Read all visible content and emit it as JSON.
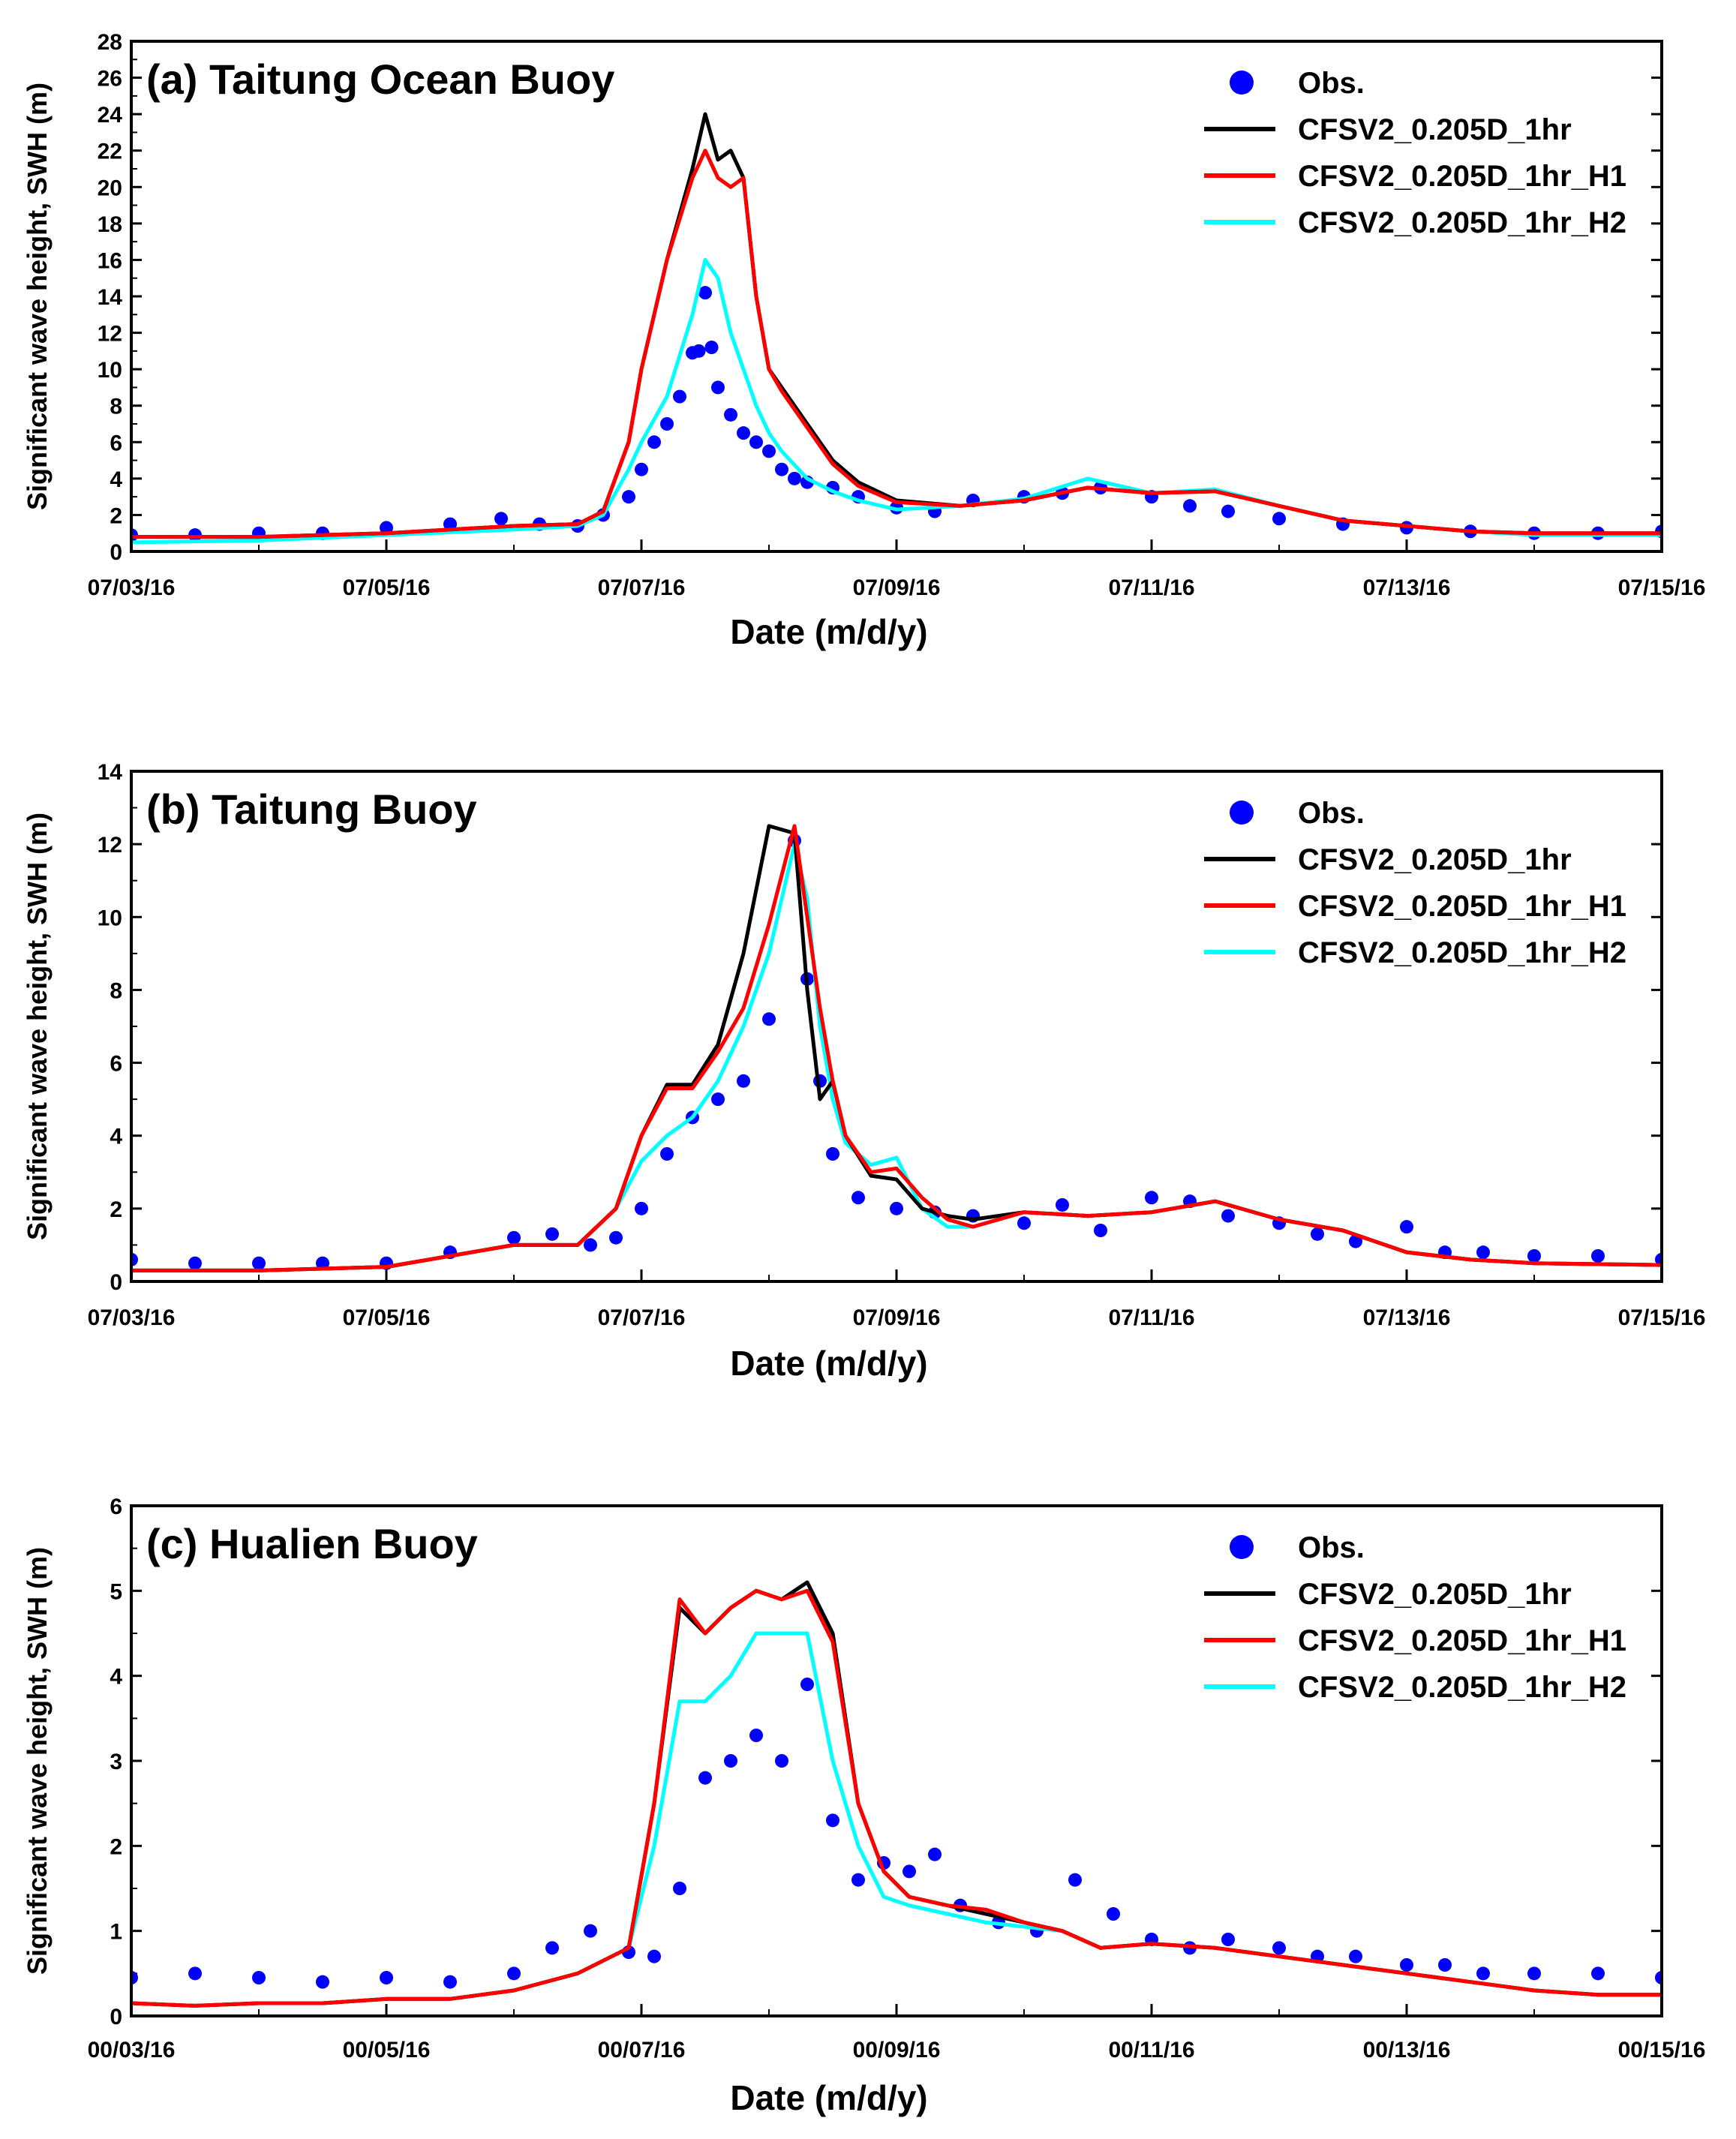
{
  "chart_data": [
    {
      "type": "line",
      "title": "(a) Taitung Ocean Buoy",
      "xlabel": "Date (m/d/y)",
      "ylabel": "Significant wave height, SWH (m)",
      "xlim": [
        0,
        12
      ],
      "ylim": [
        0,
        28
      ],
      "yticks": [
        "0",
        "2",
        "4",
        "6",
        "8",
        "10",
        "12",
        "14",
        "16",
        "18",
        "20",
        "22",
        "24",
        "26",
        "28"
      ],
      "xticks": [
        "07/03/16",
        "07/05/16",
        "07/07/16",
        "07/09/16",
        "07/11/16",
        "07/13/16",
        "07/15/16"
      ],
      "legend": [
        "Obs.",
        "CFSV2_0.205D_1hr",
        "CFSV2_0.205D_1hr_H1",
        "CFSV2_0.205D_1hr_H2"
      ],
      "legend_position": "top-right",
      "series": [
        {
          "name": "CFSV2_0.205D_1hr",
          "color": "#000000",
          "x": [
            0,
            1,
            2,
            3,
            3.5,
            3.7,
            3.9,
            4,
            4.2,
            4.4,
            4.5,
            4.6,
            4.7,
            4.8,
            4.9,
            5,
            5.1,
            5.3,
            5.5,
            5.7,
            6,
            6.5,
            7,
            7.5,
            8,
            8.5,
            9,
            9.5,
            10,
            10.5,
            11,
            12
          ],
          "y": [
            0.8,
            0.8,
            1.0,
            1.4,
            1.5,
            2.2,
            6,
            10,
            16,
            21,
            24,
            21.5,
            22,
            20.5,
            14,
            10,
            9,
            7,
            5,
            3.8,
            2.8,
            2.5,
            2.8,
            3.5,
            3.2,
            3.3,
            2.5,
            1.7,
            1.4,
            1.1,
            1.0,
            1.0
          ]
        },
        {
          "name": "CFSV2_0.205D_1hr_H1",
          "color": "#ff0000",
          "x": [
            0,
            1,
            2,
            3,
            3.5,
            3.7,
            3.9,
            4,
            4.2,
            4.4,
            4.5,
            4.6,
            4.7,
            4.8,
            4.9,
            5,
            5.1,
            5.3,
            5.5,
            5.7,
            6,
            6.5,
            7,
            7.5,
            8,
            8.5,
            9,
            9.5,
            10,
            10.5,
            11,
            12
          ],
          "y": [
            0.8,
            0.8,
            1.0,
            1.4,
            1.5,
            2.2,
            6,
            10,
            16,
            20.5,
            22,
            20.5,
            20,
            20.5,
            14,
            10,
            8.8,
            6.8,
            4.8,
            3.6,
            2.7,
            2.5,
            2.8,
            3.5,
            3.2,
            3.3,
            2.5,
            1.7,
            1.4,
            1.1,
            1.0,
            1.0
          ]
        },
        {
          "name": "CFSV2_0.205D_1hr_H2",
          "color": "#00ffff",
          "x": [
            0,
            1,
            2,
            3,
            3.5,
            3.7,
            3.9,
            4,
            4.2,
            4.4,
            4.5,
            4.6,
            4.7,
            4.8,
            4.9,
            5,
            5.1,
            5.3,
            5.5,
            5.7,
            6,
            6.5,
            7,
            7.5,
            8,
            8.5,
            9,
            9.5,
            10,
            10.5,
            11,
            12
          ],
          "y": [
            0.5,
            0.6,
            0.9,
            1.2,
            1.4,
            2.0,
            4.5,
            6,
            8.5,
            13,
            16,
            15,
            12,
            10,
            8,
            6.5,
            5.5,
            4,
            3.3,
            2.8,
            2.3,
            2.5,
            2.9,
            4.0,
            3.2,
            3.4,
            2.5,
            1.7,
            1.4,
            1.1,
            0.9,
            0.9
          ]
        },
        {
          "name": "Obs.",
          "color": "#0000ff",
          "x": [
            0,
            0.5,
            1,
            1.5,
            2,
            2.5,
            2.9,
            3.2,
            3.5,
            3.7,
            3.9,
            4.0,
            4.1,
            4.2,
            4.3,
            4.4,
            4.45,
            4.5,
            4.55,
            4.6,
            4.7,
            4.8,
            4.9,
            5.0,
            5.1,
            5.2,
            5.3,
            5.5,
            5.7,
            6,
            6.3,
            6.6,
            7,
            7.3,
            7.6,
            8,
            8.3,
            8.6,
            9,
            9.5,
            10,
            10.5,
            11,
            11.5,
            12
          ],
          "y": [
            0.9,
            0.9,
            1.0,
            1.0,
            1.3,
            1.5,
            1.8,
            1.5,
            1.4,
            2.0,
            3.0,
            4.5,
            6.0,
            7.0,
            8.5,
            10.9,
            11.0,
            14.2,
            11.2,
            9.0,
            7.5,
            6.5,
            6.0,
            5.5,
            4.5,
            4.0,
            3.8,
            3.5,
            3.0,
            2.4,
            2.2,
            2.8,
            3.0,
            3.2,
            3.5,
            3.0,
            2.5,
            2.2,
            1.8,
            1.5,
            1.3,
            1.1,
            1.0,
            1.0,
            1.1
          ]
        }
      ]
    },
    {
      "type": "line",
      "title": "(b) Taitung Buoy",
      "xlabel": "Date (m/d/y)",
      "ylabel": "Significant wave height, SWH (m)",
      "xlim": [
        0,
        12
      ],
      "ylim": [
        0,
        14
      ],
      "yticks": [
        "0",
        "2",
        "4",
        "6",
        "8",
        "10",
        "12",
        "14"
      ],
      "xticks": [
        "07/03/16",
        "07/05/16",
        "07/07/16",
        "07/09/16",
        "07/11/16",
        "07/13/16",
        "07/15/16"
      ],
      "legend": [
        "Obs.",
        "CFSV2_0.205D_1hr",
        "CFSV2_0.205D_1hr_H1",
        "CFSV2_0.205D_1hr_H2"
      ],
      "legend_position": "top-right",
      "series": [
        {
          "name": "CFSV2_0.205D_1hr",
          "color": "#000000",
          "x": [
            0,
            1,
            2,
            3,
            3.5,
            3.8,
            4.0,
            4.2,
            4.4,
            4.6,
            4.8,
            5.0,
            5.2,
            5.3,
            5.4,
            5.5,
            5.6,
            5.8,
            6.0,
            6.2,
            6.4,
            6.6,
            7,
            7.5,
            8,
            8.5,
            9,
            9.5,
            10,
            10.5,
            11,
            12
          ],
          "y": [
            0.3,
            0.3,
            0.4,
            1.0,
            1.0,
            2.0,
            4.0,
            5.4,
            5.4,
            6.5,
            9,
            12.5,
            12.3,
            8,
            5.0,
            5.5,
            4.0,
            2.9,
            2.8,
            2.0,
            1.8,
            1.7,
            1.9,
            1.8,
            1.9,
            2.2,
            1.7,
            1.4,
            0.8,
            0.6,
            0.5,
            0.45
          ]
        },
        {
          "name": "CFSV2_0.205D_1hr_H1",
          "color": "#ff0000",
          "x": [
            0,
            1,
            2,
            3,
            3.5,
            3.8,
            4.0,
            4.2,
            4.4,
            4.6,
            4.8,
            5.0,
            5.2,
            5.3,
            5.4,
            5.5,
            5.6,
            5.8,
            6.0,
            6.2,
            6.4,
            6.6,
            7,
            7.5,
            8,
            8.5,
            9,
            9.5,
            10,
            10.5,
            11,
            12
          ],
          "y": [
            0.3,
            0.3,
            0.4,
            1.0,
            1.0,
            2.0,
            4.0,
            5.3,
            5.3,
            6.3,
            7.5,
            9.8,
            12.5,
            10,
            7.5,
            5.5,
            4.0,
            3.0,
            3.1,
            2.3,
            1.7,
            1.5,
            1.9,
            1.8,
            1.9,
            2.2,
            1.7,
            1.4,
            0.8,
            0.6,
            0.5,
            0.45
          ]
        },
        {
          "name": "CFSV2_0.205D_1hr_H2",
          "color": "#00ffff",
          "x": [
            0,
            1,
            2,
            3,
            3.5,
            3.8,
            4.0,
            4.2,
            4.4,
            4.6,
            4.8,
            5.0,
            5.2,
            5.3,
            5.4,
            5.5,
            5.6,
            5.8,
            6.0,
            6.2,
            6.4,
            6.6,
            7,
            7.5,
            8,
            8.5,
            9,
            9.5,
            10,
            10.5,
            11,
            12
          ],
          "y": [
            0.3,
            0.3,
            0.4,
            1.0,
            1.0,
            2.0,
            3.3,
            4.0,
            4.5,
            5.5,
            7.0,
            9.0,
            12.0,
            10.5,
            7,
            5.0,
            3.8,
            3.2,
            3.4,
            2.0,
            1.5,
            1.5,
            1.9,
            1.8,
            1.9,
            2.2,
            1.7,
            1.4,
            0.8,
            0.6,
            0.5,
            0.45
          ]
        },
        {
          "name": "Obs.",
          "color": "#0000ff",
          "x": [
            0,
            0.5,
            1,
            1.5,
            2,
            2.5,
            3.0,
            3.3,
            3.6,
            3.8,
            4.0,
            4.2,
            4.4,
            4.6,
            4.8,
            5.0,
            5.2,
            5.3,
            5.4,
            5.5,
            5.7,
            6.0,
            6.3,
            6.6,
            7,
            7.3,
            7.6,
            8,
            8.3,
            8.6,
            9,
            9.3,
            9.6,
            10,
            10.3,
            10.6,
            11,
            11.5,
            12
          ],
          "y": [
            0.6,
            0.5,
            0.5,
            0.5,
            0.5,
            0.8,
            1.2,
            1.3,
            1.0,
            1.2,
            2.0,
            3.5,
            4.5,
            5.0,
            5.5,
            7.2,
            12.1,
            8.3,
            5.5,
            3.5,
            2.3,
            2.0,
            1.9,
            1.8,
            1.6,
            2.1,
            1.4,
            2.3,
            2.2,
            1.8,
            1.6,
            1.3,
            1.1,
            1.5,
            0.8,
            0.8,
            0.7,
            0.7,
            0.6
          ]
        }
      ]
    },
    {
      "type": "line",
      "title": "(c) Hualien Buoy",
      "xlabel": "Date (m/d/y)",
      "ylabel": "Significant wave height, SWH (m)",
      "xlim": [
        0,
        12
      ],
      "ylim": [
        0,
        6
      ],
      "yticks": [
        "0",
        "1",
        "2",
        "3",
        "4",
        "5",
        "6"
      ],
      "xticks": [
        "00/03/16",
        "00/05/16",
        "00/07/16",
        "00/09/16",
        "00/11/16",
        "00/13/16",
        "00/15/16"
      ],
      "legend": [
        "Obs.",
        "CFSV2_0.205D_1hr",
        "CFSV2_0.205D_1hr_H1",
        "CFSV2_0.205D_1hr_H2"
      ],
      "legend_position": "top-right",
      "series": [
        {
          "name": "CFSV2_0.205D_1hr",
          "color": "#000000",
          "x": [
            0,
            0.5,
            1,
            1.5,
            2,
            2.5,
            3,
            3.5,
            3.9,
            4.1,
            4.3,
            4.5,
            4.7,
            4.9,
            5.1,
            5.3,
            5.5,
            5.7,
            5.9,
            6.1,
            6.4,
            6.7,
            7,
            7.3,
            7.6,
            8,
            8.5,
            9,
            9.5,
            10,
            10.5,
            11,
            11.5,
            12
          ],
          "y": [
            0.15,
            0.12,
            0.15,
            0.15,
            0.2,
            0.2,
            0.3,
            0.5,
            0.8,
            2.5,
            4.8,
            4.5,
            4.8,
            5.0,
            4.9,
            5.1,
            4.5,
            2.5,
            1.7,
            1.4,
            1.3,
            1.2,
            1.1,
            1.0,
            0.8,
            0.85,
            0.8,
            0.7,
            0.6,
            0.5,
            0.4,
            0.3,
            0.25,
            0.25
          ]
        },
        {
          "name": "CFSV2_0.205D_1hr_H1",
          "color": "#ff0000",
          "x": [
            0,
            0.5,
            1,
            1.5,
            2,
            2.5,
            3,
            3.5,
            3.9,
            4.1,
            4.3,
            4.5,
            4.7,
            4.9,
            5.1,
            5.3,
            5.5,
            5.7,
            5.9,
            6.1,
            6.4,
            6.7,
            7,
            7.3,
            7.6,
            8,
            8.5,
            9,
            9.5,
            10,
            10.5,
            11,
            11.5,
            12
          ],
          "y": [
            0.15,
            0.12,
            0.15,
            0.15,
            0.2,
            0.2,
            0.3,
            0.5,
            0.8,
            2.5,
            4.9,
            4.5,
            4.8,
            5.0,
            4.9,
            5.0,
            4.4,
            2.5,
            1.7,
            1.4,
            1.3,
            1.25,
            1.1,
            1.0,
            0.8,
            0.85,
            0.8,
            0.7,
            0.6,
            0.5,
            0.4,
            0.3,
            0.25,
            0.25
          ]
        },
        {
          "name": "CFSV2_0.205D_1hr_H2",
          "color": "#00ffff",
          "x": [
            0,
            0.5,
            1,
            1.5,
            2,
            2.5,
            3,
            3.5,
            3.9,
            4.1,
            4.3,
            4.5,
            4.7,
            4.9,
            5.1,
            5.3,
            5.5,
            5.7,
            5.9,
            6.1,
            6.4,
            6.7,
            7,
            7.3,
            7.6,
            8,
            8.5,
            9,
            9.5,
            10,
            10.5,
            11,
            11.5,
            12
          ],
          "y": [
            0.15,
            0.12,
            0.15,
            0.15,
            0.2,
            0.2,
            0.3,
            0.5,
            0.8,
            2.0,
            3.7,
            3.7,
            4.0,
            4.5,
            4.5,
            4.5,
            3.0,
            2.0,
            1.4,
            1.3,
            1.2,
            1.1,
            1.05,
            1.0,
            0.8,
            0.85,
            0.8,
            0.7,
            0.6,
            0.5,
            0.4,
            0.3,
            0.25,
            0.25
          ]
        },
        {
          "name": "Obs.",
          "color": "#0000ff",
          "x": [
            0,
            0.5,
            1,
            1.5,
            2,
            2.5,
            3,
            3.3,
            3.6,
            3.9,
            4.1,
            4.3,
            4.5,
            4.7,
            4.9,
            5.1,
            5.3,
            5.5,
            5.7,
            5.9,
            6.1,
            6.3,
            6.5,
            6.8,
            7.1,
            7.4,
            7.7,
            8,
            8.3,
            8.6,
            9,
            9.3,
            9.6,
            10,
            10.3,
            10.6,
            11,
            11.5,
            12
          ],
          "y": [
            0.45,
            0.5,
            0.45,
            0.4,
            0.45,
            0.4,
            0.5,
            0.8,
            1.0,
            0.75,
            0.7,
            1.5,
            2.8,
            3.0,
            3.3,
            3.0,
            3.9,
            2.3,
            1.6,
            1.8,
            1.7,
            1.9,
            1.3,
            1.1,
            1.0,
            1.6,
            1.2,
            0.9,
            0.8,
            0.9,
            0.8,
            0.7,
            0.7,
            0.6,
            0.6,
            0.5,
            0.5,
            0.5,
            0.45
          ]
        }
      ]
    }
  ]
}
